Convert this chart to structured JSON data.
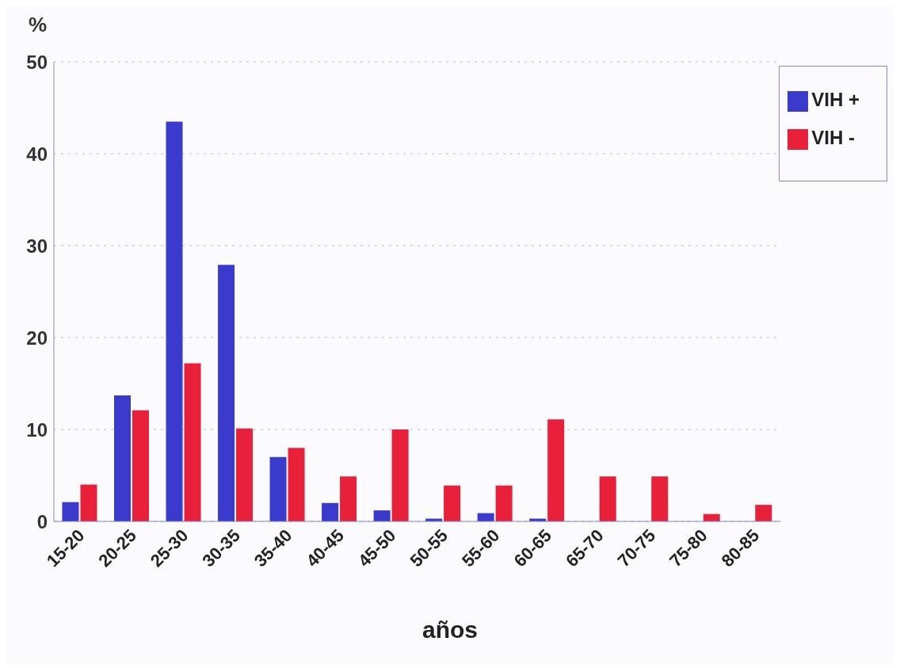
{
  "chart_data": {
    "type": "bar",
    "ylabel": "%",
    "xlabel": "años",
    "categories": [
      "15-20",
      "20-25",
      "25-30",
      "30-35",
      "35-40",
      "40-45",
      "45-50",
      "50-55",
      "55-60",
      "60-65",
      "65-70",
      "70-75",
      "75-80",
      "80-85"
    ],
    "series": [
      {
        "name": "VIH +",
        "color": "#3a3acc",
        "values": [
          2.1,
          13.7,
          43.5,
          27.9,
          7.0,
          2.0,
          1.2,
          0.3,
          0.9,
          0.3,
          0,
          0,
          0,
          0
        ]
      },
      {
        "name": "VIH -",
        "color": "#e8203a",
        "values": [
          4.0,
          12.1,
          17.2,
          10.1,
          8.0,
          4.9,
          10.0,
          3.9,
          3.9,
          11.1,
          4.9,
          4.9,
          0.8,
          1.8
        ]
      }
    ],
    "ylim": [
      0,
      50
    ],
    "yticks": [
      0,
      10,
      20,
      30,
      40,
      50
    ],
    "grid": "y",
    "legend": "top right"
  }
}
